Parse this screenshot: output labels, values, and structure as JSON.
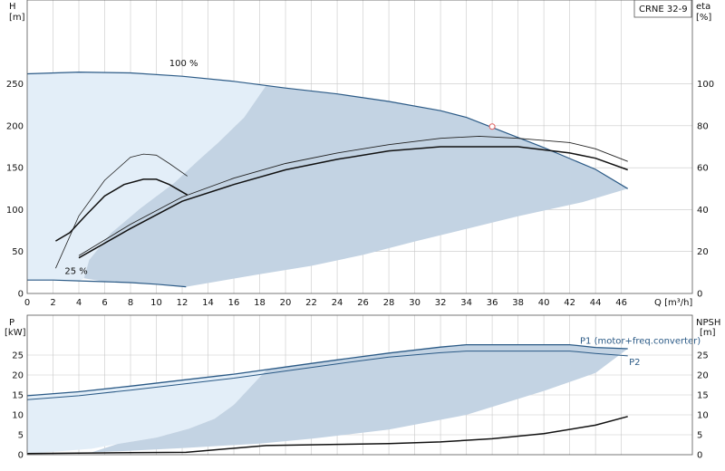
{
  "chart_data": [
    {
      "type": "line",
      "name": "head-efficiency",
      "model_label": "CRNE 32-9",
      "y_left": {
        "label": "H",
        "unit": "[m]",
        "range": [
          0,
          350
        ],
        "ticks": [
          0,
          50,
          100,
          150,
          200,
          250
        ]
      },
      "y_right": {
        "label": "eta",
        "unit": "[%]",
        "range": [
          0,
          140
        ],
        "ticks": [
          0,
          20,
          40,
          60,
          80,
          100
        ]
      },
      "x": {
        "label": "Q",
        "unit": "[m³/h]",
        "range": [
          0,
          51.5
        ],
        "ticks": [
          0,
          2,
          4,
          6,
          8,
          10,
          12,
          14,
          16,
          18,
          20,
          22,
          24,
          26,
          28,
          30,
          32,
          34,
          36,
          38,
          40,
          42,
          44,
          46
        ]
      },
      "grid": true,
      "curve_labels": [
        {
          "text": "100 %",
          "x": 11,
          "y": 271
        },
        {
          "text": "25 %",
          "x": 2.9,
          "y": 23
        }
      ],
      "head_100": [
        [
          0,
          262
        ],
        [
          4,
          264
        ],
        [
          8,
          263
        ],
        [
          12,
          259
        ],
        [
          16,
          253
        ],
        [
          20,
          245
        ],
        [
          24,
          238
        ],
        [
          28,
          229
        ],
        [
          32,
          218
        ],
        [
          34,
          210
        ],
        [
          36,
          198
        ],
        [
          38,
          186
        ],
        [
          40,
          174
        ],
        [
          42,
          161
        ],
        [
          44,
          148
        ],
        [
          46.5,
          125
        ]
      ],
      "head_25": [
        [
          0,
          16
        ],
        [
          2,
          16
        ],
        [
          4,
          15
        ],
        [
          6,
          14
        ],
        [
          8,
          13
        ],
        [
          10,
          11
        ],
        [
          12.3,
          8
        ]
      ],
      "region_light": [
        [
          0,
          262
        ],
        [
          4,
          264
        ],
        [
          8,
          263
        ],
        [
          12,
          259
        ],
        [
          16,
          253
        ],
        [
          18.5,
          248
        ],
        [
          16.8,
          210
        ],
        [
          14.8,
          180
        ],
        [
          13.2,
          158
        ],
        [
          11.4,
          132
        ],
        [
          8.8,
          102
        ],
        [
          6.5,
          72
        ],
        [
          4.8,
          40
        ],
        [
          4.4,
          18
        ],
        [
          4,
          15
        ],
        [
          2,
          16
        ],
        [
          0,
          16
        ]
      ],
      "region_dark": [
        [
          18.5,
          248
        ],
        [
          20,
          245
        ],
        [
          24,
          238
        ],
        [
          28,
          229
        ],
        [
          32,
          218
        ],
        [
          34,
          210
        ],
        [
          36,
          198
        ],
        [
          38,
          186
        ],
        [
          40,
          174
        ],
        [
          42,
          161
        ],
        [
          44,
          148
        ],
        [
          46.5,
          125
        ],
        [
          43,
          109
        ],
        [
          38,
          92
        ],
        [
          34,
          77
        ],
        [
          30,
          62
        ],
        [
          26,
          46
        ],
        [
          22,
          33
        ],
        [
          18,
          23
        ],
        [
          12.3,
          8
        ],
        [
          10,
          11
        ],
        [
          8,
          13
        ],
        [
          6,
          14
        ],
        [
          4.4,
          18
        ],
        [
          4.8,
          40
        ],
        [
          6.5,
          72
        ],
        [
          8.8,
          102
        ],
        [
          11.4,
          132
        ],
        [
          13.2,
          158
        ],
        [
          14.8,
          180
        ],
        [
          16.8,
          210
        ]
      ],
      "eta_thin": [
        [
          2.2,
          12
        ],
        [
          4,
          37
        ],
        [
          6,
          54
        ],
        [
          8,
          65
        ],
        [
          9,
          66.5
        ],
        [
          10,
          66
        ],
        [
          11,
          62
        ],
        [
          12.4,
          56
        ]
      ],
      "eta_bold": [
        [
          2.2,
          25
        ],
        [
          3.3,
          29
        ],
        [
          4.5,
          37
        ],
        [
          6,
          46.5
        ],
        [
          7.5,
          52
        ],
        [
          9,
          54.5
        ],
        [
          10,
          54.5
        ],
        [
          11,
          52
        ],
        [
          12.4,
          47
        ]
      ],
      "eta_sys_upper": [
        [
          4,
          18
        ],
        [
          8,
          33
        ],
        [
          12,
          46
        ],
        [
          16,
          55
        ],
        [
          20,
          62
        ],
        [
          24,
          67
        ],
        [
          28,
          71
        ],
        [
          32,
          74
        ],
        [
          35,
          75
        ],
        [
          38,
          74
        ],
        [
          42,
          72
        ],
        [
          44,
          69
        ],
        [
          46.5,
          63
        ]
      ],
      "eta_sys_lower": [
        [
          4,
          17
        ],
        [
          8,
          31
        ],
        [
          12,
          44
        ],
        [
          16,
          52
        ],
        [
          20,
          59
        ],
        [
          24,
          64
        ],
        [
          28,
          68
        ],
        [
          32,
          70
        ],
        [
          35,
          70
        ],
        [
          38,
          70
        ],
        [
          42,
          67
        ],
        [
          44,
          64.5
        ],
        [
          46.5,
          59
        ]
      ],
      "marker": {
        "x": 36,
        "y": 199
      }
    },
    {
      "type": "line",
      "name": "power-npsh",
      "y_left": {
        "label": "P",
        "unit": "[kW]",
        "range": [
          0,
          35
        ],
        "ticks": [
          0,
          5,
          10,
          15,
          20,
          25
        ]
      },
      "y_right": {
        "label": "NPSH",
        "unit": "[m]",
        "range": [
          0,
          35
        ],
        "ticks": [
          0,
          5,
          10,
          15,
          20,
          25
        ]
      },
      "x": {
        "range": [
          0,
          51.5
        ]
      },
      "grid": true,
      "series_labels": [
        {
          "text": "P1 (motor+freq.converter)",
          "x": 42.8,
          "y": 27.8
        },
        {
          "text": "P2",
          "x": 46.6,
          "y": 22.5
        }
      ],
      "P1": [
        [
          0,
          14.8
        ],
        [
          4,
          15.8
        ],
        [
          8,
          17.2
        ],
        [
          12,
          18.7
        ],
        [
          16,
          20.2
        ],
        [
          20,
          22
        ],
        [
          24,
          23.8
        ],
        [
          28,
          25.5
        ],
        [
          32,
          27
        ],
        [
          34,
          27.6
        ],
        [
          36,
          27.6
        ],
        [
          40,
          27.6
        ],
        [
          42,
          27.6
        ],
        [
          44,
          26.9
        ],
        [
          46.5,
          26.6
        ]
      ],
      "P2": [
        [
          0,
          13.8
        ],
        [
          4,
          14.8
        ],
        [
          8,
          16.2
        ],
        [
          12,
          17.7
        ],
        [
          16,
          19.2
        ],
        [
          20,
          21
        ],
        [
          24,
          22.8
        ],
        [
          28,
          24.5
        ],
        [
          32,
          25.6
        ],
        [
          34,
          26
        ],
        [
          36,
          26
        ],
        [
          40,
          26
        ],
        [
          42,
          26
        ],
        [
          44,
          25.4
        ],
        [
          46.5,
          24.8
        ]
      ],
      "NPSH": [
        [
          0,
          0.3
        ],
        [
          4,
          0.4
        ],
        [
          8,
          0.5
        ],
        [
          12.3,
          0.6
        ],
        [
          18.5,
          2.3
        ],
        [
          24,
          2.6
        ],
        [
          28,
          2.8
        ],
        [
          32,
          3.2
        ],
        [
          36,
          4
        ],
        [
          40,
          5.3
        ],
        [
          44,
          7.4
        ],
        [
          46.5,
          9.6
        ]
      ],
      "region_light": [
        [
          0,
          14.8
        ],
        [
          4,
          15.8
        ],
        [
          8,
          17.2
        ],
        [
          12,
          18.7
        ],
        [
          16,
          20.2
        ],
        [
          18.5,
          21.2
        ],
        [
          16,
          12.5
        ],
        [
          14.5,
          9
        ],
        [
          12.5,
          6.5
        ],
        [
          10,
          4.3
        ],
        [
          7,
          2.7
        ],
        [
          5,
          1.5
        ],
        [
          0,
          0.2
        ]
      ],
      "region_dark": [
        [
          18.5,
          21.2
        ],
        [
          20,
          22
        ],
        [
          24,
          23.8
        ],
        [
          28,
          25.5
        ],
        [
          32,
          27
        ],
        [
          34,
          27.6
        ],
        [
          36,
          27.6
        ],
        [
          40,
          27.6
        ],
        [
          42,
          27.6
        ],
        [
          44,
          26.9
        ],
        [
          46.5,
          26.6
        ],
        [
          44,
          20.5
        ],
        [
          40,
          16
        ],
        [
          34,
          10
        ],
        [
          28,
          6.3
        ],
        [
          22,
          4
        ],
        [
          18,
          2.8
        ],
        [
          12.3,
          1.7
        ],
        [
          8,
          1
        ],
        [
          5,
          0.6
        ],
        [
          7,
          2.7
        ],
        [
          10,
          4.3
        ],
        [
          12.5,
          6.5
        ],
        [
          14.5,
          9
        ],
        [
          16,
          12.5
        ]
      ]
    }
  ]
}
